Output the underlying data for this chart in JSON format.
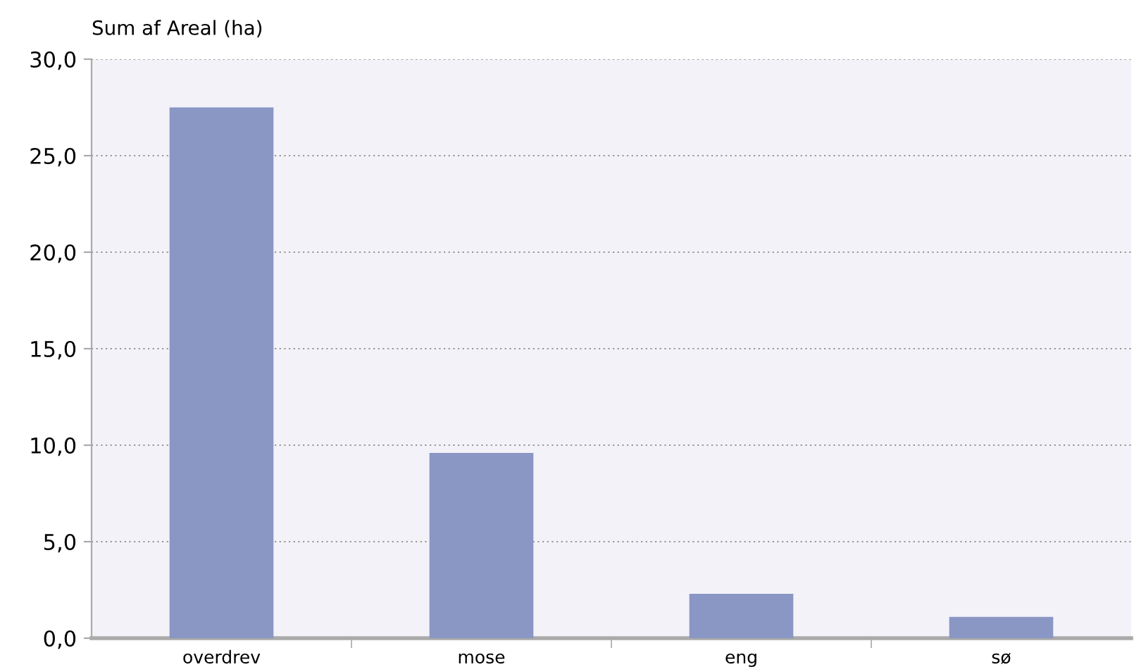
{
  "chart_data": {
    "type": "bar",
    "ylabel": "Sum af Areal (ha)",
    "categories": [
      "overdrev",
      "mose",
      "eng",
      "sø"
    ],
    "values": [
      27.5,
      9.6,
      2.3,
      1.1
    ],
    "color": "#8a96c4",
    "ylim": [
      0,
      30
    ],
    "yticks": [
      {
        "value": 0,
        "label": "0,0"
      },
      {
        "value": 5,
        "label": "5,0"
      },
      {
        "value": 10,
        "label": "10,0"
      },
      {
        "value": 15,
        "label": "15,0"
      },
      {
        "value": 20,
        "label": "20,0"
      },
      {
        "value": 25,
        "label": "25,0"
      },
      {
        "value": 30,
        "label": "30,0"
      }
    ],
    "grid": "y"
  }
}
